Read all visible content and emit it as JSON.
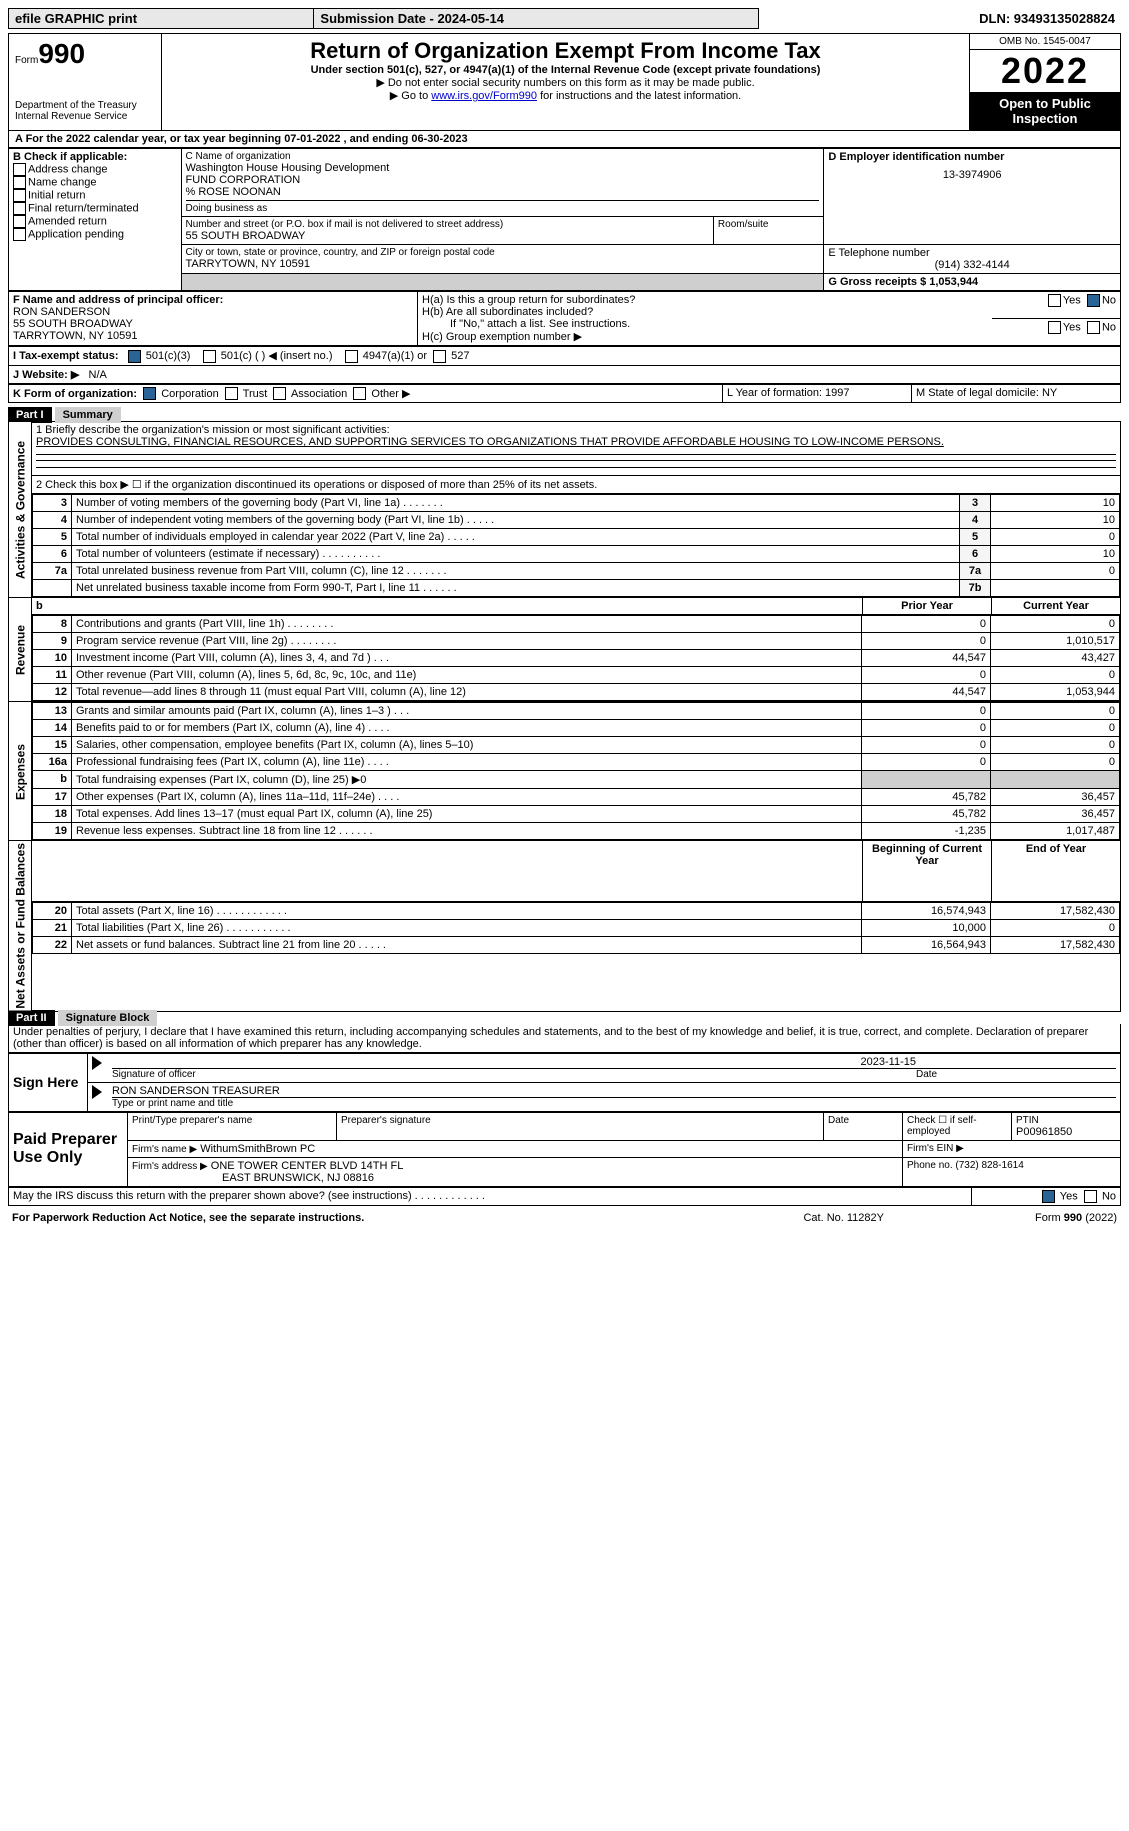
{
  "top_bar": {
    "efile": "efile GRAPHIC print",
    "submission_label": "Submission Date - 2024-05-14",
    "dln_label": "DLN: 93493135028824"
  },
  "header": {
    "form_word": "Form",
    "form_number": "990",
    "dept": "Department of the Treasury",
    "irs": "Internal Revenue Service",
    "title": "Return of Organization Exempt From Income Tax",
    "subtitle": "Under section 501(c), 527, or 4947(a)(1) of the Internal Revenue Code (except private foundations)",
    "warn": "▶ Do not enter social security numbers on this form as it may be made public.",
    "goto_pre": "▶ Go to ",
    "goto_link": "www.irs.gov/Form990",
    "goto_post": " for instructions and the latest information.",
    "omb": "OMB No. 1545-0047",
    "year": "2022",
    "inspection": "Open to Public Inspection"
  },
  "section_a": {
    "line": "A For the 2022 calendar year, or tax year beginning 07-01-2022   , and ending 06-30-2023"
  },
  "section_b": {
    "label": "B Check if applicable:",
    "opts": [
      "Address change",
      "Name change",
      "Initial return",
      "Final return/terminated",
      "Amended return",
      "Application pending"
    ]
  },
  "section_c": {
    "name_label": "C Name of organization",
    "name1": "Washington House Housing Development",
    "name2": "FUND CORPORATION",
    "name3": "% ROSE NOONAN",
    "dba": "Doing business as",
    "street_label": "Number and street (or P.O. box if mail is not delivered to street address)",
    "room_label": "Room/suite",
    "street": "55 SOUTH BROADWAY",
    "city_label": "City or town, state or province, country, and ZIP or foreign postal code",
    "city": "TARRYTOWN, NY  10591"
  },
  "section_d": {
    "label": "D Employer identification number",
    "val": "13-3974906"
  },
  "section_e": {
    "label": "E Telephone number",
    "val": "(914) 332-4144"
  },
  "section_g": {
    "label": "G Gross receipts $ 1,053,944"
  },
  "section_f": {
    "label": "F Name and address of principal officer:",
    "name": "RON SANDERSON",
    "street": "55 SOUTH BROADWAY",
    "city": "TARRYTOWN, NY  10591"
  },
  "section_h": {
    "ha": "H(a)  Is this a group return for subordinates?",
    "yes": "Yes",
    "no": "No",
    "hb": "H(b)  Are all subordinates included?",
    "hb_note": "If \"No,\" attach a list. See instructions.",
    "hc": "H(c)  Group exemption number ▶"
  },
  "section_i": {
    "label": "I   Tax-exempt status:",
    "c3": "501(c)(3)",
    "c": "501(c) (  ) ◀ (insert no.)",
    "a47": "4947(a)(1) or",
    "s527": "527"
  },
  "section_j": {
    "label": "J   Website: ▶",
    "val": "N/A"
  },
  "section_k": {
    "label": "K Form of organization:",
    "corp": "Corporation",
    "trust": "Trust",
    "assoc": "Association",
    "other": "Other ▶"
  },
  "section_l": {
    "label": "L Year of formation: 1997"
  },
  "section_m": {
    "label": "M State of legal domicile: NY"
  },
  "part1": {
    "header": "Part I",
    "title": "Summary",
    "q1_label": "1   Briefly describe the organization's mission or most significant activities:",
    "q1_text": "PROVIDES CONSULTING, FINANCIAL RESOURCES, AND SUPPORTING SERVICES TO ORGANIZATIONS THAT PROVIDE AFFORDABLE HOUSING TO LOW-INCOME PERSONS.",
    "q2": "2   Check this box ▶ ☐  if the organization discontinued its operations or disposed of more than 25% of its net assets.",
    "rows_ag": [
      {
        "n": "3",
        "t": "Number of voting members of the governing body (Part VI, line 1a)   .    .    .    .    .    .    .",
        "box": "3",
        "v": "10"
      },
      {
        "n": "4",
        "t": "Number of independent voting members of the governing body (Part VI, line 1b)   .    .    .    .    .",
        "box": "4",
        "v": "10"
      },
      {
        "n": "5",
        "t": "Total number of individuals employed in calendar year 2022 (Part V, line 2a)   .    .    .    .    .",
        "box": "5",
        "v": "0"
      },
      {
        "n": "6",
        "t": "Total number of volunteers (estimate if necessary)    .    .    .    .    .    .    .    .    .    .",
        "box": "6",
        "v": "10"
      },
      {
        "n": "7a",
        "t": "Total unrelated business revenue from Part VIII, column (C), line 12   .    .    .    .    .    .    .",
        "box": "7a",
        "v": "0"
      },
      {
        "n": "",
        "t": "Net unrelated business taxable income from Form 990-T, Part I, line 11   .    .    .    .    .    .",
        "box": "7b",
        "v": ""
      }
    ],
    "col_prior": "Prior Year",
    "col_current": "Current Year",
    "revenue": [
      {
        "n": "8",
        "t": "Contributions and grants (Part VIII, line 1h)   .    .    .    .    .    .    .    .",
        "p": "0",
        "c": "0"
      },
      {
        "n": "9",
        "t": "Program service revenue (Part VIII, line 2g)    .    .    .    .    .    .    .    .",
        "p": "0",
        "c": "1,010,517"
      },
      {
        "n": "10",
        "t": "Investment income (Part VIII, column (A), lines 3, 4, and 7d )    .    .    .",
        "p": "44,547",
        "c": "43,427"
      },
      {
        "n": "11",
        "t": "Other revenue (Part VIII, column (A), lines 5, 6d, 8c, 9c, 10c, and 11e)",
        "p": "0",
        "c": "0"
      },
      {
        "n": "12",
        "t": "Total revenue—add lines 8 through 11 (must equal Part VIII, column (A), line 12)",
        "p": "44,547",
        "c": "1,053,944"
      }
    ],
    "expenses": [
      {
        "n": "13",
        "t": "Grants and similar amounts paid (Part IX, column (A), lines 1–3 )   .    .    .",
        "p": "0",
        "c": "0"
      },
      {
        "n": "14",
        "t": "Benefits paid to or for members (Part IX, column (A), line 4)   .    .    .    .",
        "p": "0",
        "c": "0"
      },
      {
        "n": "15",
        "t": "Salaries, other compensation, employee benefits (Part IX, column (A), lines 5–10)",
        "p": "0",
        "c": "0"
      },
      {
        "n": "16a",
        "t": "Professional fundraising fees (Part IX, column (A), line 11e)   .    .    .    .",
        "p": "0",
        "c": "0"
      },
      {
        "n": "b",
        "t": "Total fundraising expenses (Part IX, column (D), line 25) ▶0",
        "p": "",
        "c": "",
        "grey": true
      },
      {
        "n": "17",
        "t": "Other expenses (Part IX, column (A), lines 11a–11d, 11f–24e)   .    .    .    .",
        "p": "45,782",
        "c": "36,457"
      },
      {
        "n": "18",
        "t": "Total expenses. Add lines 13–17 (must equal Part IX, column (A), line 25)",
        "p": "45,782",
        "c": "36,457"
      },
      {
        "n": "19",
        "t": "Revenue less expenses. Subtract line 18 from line 12   .    .    .    .    .    .",
        "p": "-1,235",
        "c": "1,017,487"
      }
    ],
    "col_begin": "Beginning of Current Year",
    "col_end": "End of Year",
    "net": [
      {
        "n": "20",
        "t": "Total assets (Part X, line 16)   .    .    .    .    .    .    .    .    .    .    .    .",
        "p": "16,574,943",
        "c": "17,582,430"
      },
      {
        "n": "21",
        "t": "Total liabilities (Part X, line 26)   .    .    .    .    .    .    .    .    .    .    .",
        "p": "10,000",
        "c": "0"
      },
      {
        "n": "22",
        "t": "Net assets or fund balances. Subtract line 21 from line 20   .    .    .    .    .",
        "p": "16,564,943",
        "c": "17,582,430"
      }
    ],
    "vl_ag": "Activities & Governance",
    "vl_rev": "Revenue",
    "vl_exp": "Expenses",
    "vl_net": "Net Assets or Fund Balances"
  },
  "part2": {
    "header": "Part II",
    "title": "Signature Block",
    "decl": "Under penalties of perjury, I declare that I have examined this return, including accompanying schedules and statements, and to the best of my knowledge and belief, it is true, correct, and complete. Declaration of preparer (other than officer) is based on all information of which preparer has any knowledge.",
    "sign_here": "Sign Here",
    "sig_date": "2023-11-15",
    "sig_officer": "Signature of officer",
    "date": "Date",
    "name_title": "RON SANDERSON  TREASURER",
    "type_name": "Type or print name and title",
    "paid": "Paid Preparer Use Only",
    "print_name": "Print/Type preparer's name",
    "prep_sig": "Preparer's signature",
    "prep_date": "Date",
    "check_if": "Check ☐ if self-employed",
    "ptin_label": "PTIN",
    "ptin": "P00961850",
    "firm_name_label": "Firm's name    ▶",
    "firm_name": "WithumSmithBrown PC",
    "firm_ein": "Firm's EIN ▶",
    "firm_addr_label": "Firm's address ▶",
    "firm_addr1": "ONE TOWER CENTER BLVD 14TH FL",
    "firm_addr2": "EAST BRUNSWICK, NJ  08816",
    "phone_label": "Phone no. (732) 828-1614",
    "discuss": "May the IRS discuss this return with the preparer shown above? (see instructions)   .    .    .    .    .    .    .    .    .    .    .    .",
    "discuss_yes": "Yes",
    "discuss_no": "No"
  },
  "footer": {
    "left": "For Paperwork Reduction Act Notice, see the separate instructions.",
    "mid": "Cat. No. 11282Y",
    "right": "Form 990 (2022)"
  }
}
